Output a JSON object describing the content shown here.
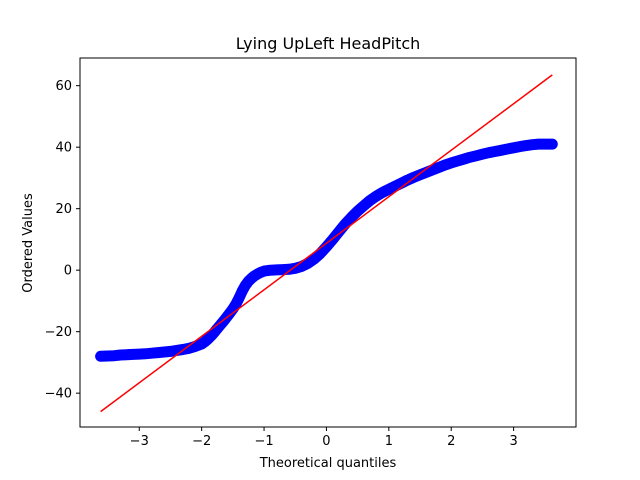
{
  "chart_data": {
    "type": "scatter",
    "title": "Lying UpLeft HeadPitch",
    "xlabel": "Theoretical quantiles",
    "ylabel": "Ordered Values",
    "xlim": [
      -3.95,
      4.0
    ],
    "ylim": [
      -51,
      69
    ],
    "xticks": [
      -3,
      -2,
      -1,
      0,
      1,
      2,
      3
    ],
    "xtick_labels": [
      "−3",
      "−2",
      "−1",
      "0",
      "1",
      "2",
      "3"
    ],
    "yticks": [
      -40,
      -20,
      0,
      20,
      40,
      60
    ],
    "ytick_labels": [
      "−40",
      "−20",
      "0",
      "20",
      "40",
      "60"
    ],
    "grid": false,
    "series": [
      {
        "kind": "points",
        "color": "#0000ff",
        "x": [
          -3.62,
          -3.4,
          -3.3,
          -3.2,
          -3.1,
          -3.0,
          -2.9,
          -2.8,
          -2.7,
          -2.6,
          -2.5,
          -2.4,
          -2.3,
          -2.2,
          -2.1,
          -2.0,
          -1.95,
          -1.9,
          -1.85,
          -1.8,
          -1.75,
          -1.7,
          -1.65,
          -1.6,
          -1.55,
          -1.5,
          -1.45,
          -1.4,
          -1.35,
          -1.3,
          -1.25,
          -1.2,
          -1.15,
          -1.1,
          -1.05,
          -1.0,
          -0.9,
          -0.8,
          -0.7,
          -0.6,
          -0.5,
          -0.4,
          -0.3,
          -0.2,
          -0.1,
          0.0,
          0.1,
          0.2,
          0.3,
          0.4,
          0.5,
          0.6,
          0.7,
          0.8,
          0.9,
          1.0,
          1.1,
          1.2,
          1.3,
          1.4,
          1.5,
          1.6,
          1.7,
          1.8,
          1.9,
          2.0,
          2.1,
          2.2,
          2.3,
          2.4,
          2.5,
          2.6,
          2.7,
          2.8,
          2.9,
          3.0,
          3.1,
          3.2,
          3.3,
          3.4,
          3.62
        ],
        "y": [
          -28.0,
          -27.8,
          -27.6,
          -27.5,
          -27.4,
          -27.3,
          -27.2,
          -27.0,
          -26.8,
          -26.6,
          -26.4,
          -26.1,
          -25.8,
          -25.4,
          -24.8,
          -24.0,
          -23.3,
          -22.4,
          -21.4,
          -20.3,
          -19.0,
          -17.8,
          -16.6,
          -15.3,
          -14.0,
          -12.6,
          -11.0,
          -9.0,
          -6.8,
          -5.0,
          -3.6,
          -2.6,
          -1.8,
          -1.2,
          -0.7,
          -0.3,
          0.0,
          0.1,
          0.2,
          0.3,
          0.6,
          1.2,
          2.2,
          3.6,
          5.4,
          7.6,
          10.0,
          12.5,
          15.0,
          17.2,
          19.2,
          21.0,
          22.7,
          24.1,
          25.3,
          26.3,
          27.3,
          28.3,
          29.3,
          30.2,
          31.0,
          31.8,
          32.6,
          33.4,
          34.2,
          34.9,
          35.5,
          36.1,
          36.7,
          37.2,
          37.7,
          38.2,
          38.6,
          39.0,
          39.4,
          39.8,
          40.2,
          40.5,
          40.8,
          41.0,
          41.0
        ]
      },
      {
        "kind": "fit-line",
        "color": "#ff0000",
        "x": [
          -3.62,
          3.62
        ],
        "y": [
          -46.0,
          63.5
        ]
      }
    ]
  }
}
